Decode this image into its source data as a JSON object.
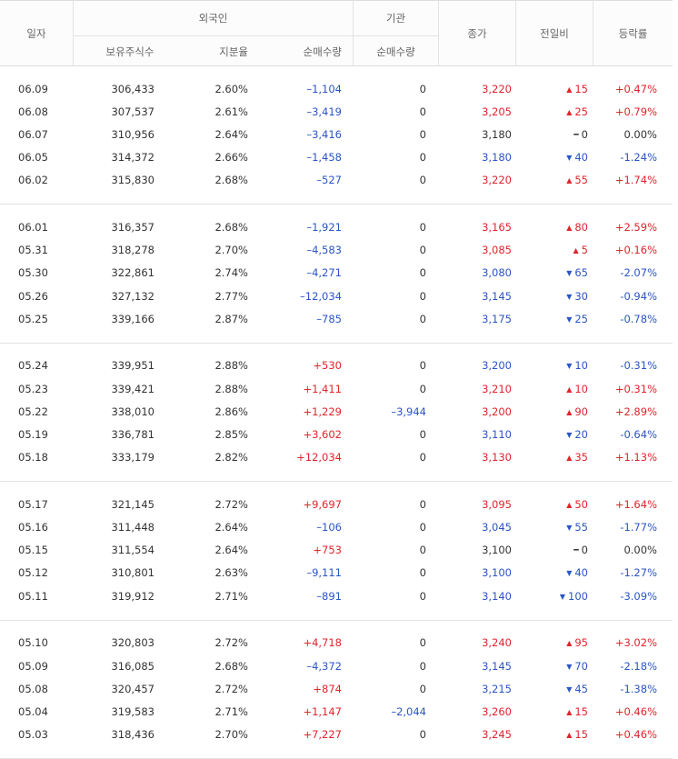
{
  "header": {
    "date": "일자",
    "foreign": "외국인",
    "holdings": "보유주식수",
    "ratio": "지분율",
    "foreign_net": "순매수량",
    "institution": "기관",
    "inst_net": "순매수량",
    "close": "종가",
    "change": "전일비",
    "rate": "등락률"
  },
  "table": {
    "rows": [
      [
        "06.09",
        "306,433",
        "2.60%",
        "–1,104",
        "0",
        "3,220",
        "15",
        "+0.47%"
      ],
      [
        "06.08",
        "307,537",
        "2.61%",
        "–3,419",
        "0",
        "3,205",
        "25",
        "+0.79%"
      ],
      [
        "06.07",
        "310,956",
        "2.64%",
        "–3,416",
        "0",
        "3,180",
        "0",
        "0.00%"
      ],
      [
        "06.05",
        "314,372",
        "2.66%",
        "–1,458",
        "0",
        "3,180",
        "40",
        "-1.24%"
      ],
      [
        "06.02",
        "315,830",
        "2.68%",
        "–527",
        "0",
        "3,220",
        "55",
        "+1.74%"
      ],
      [
        "06.01",
        "316,357",
        "2.68%",
        "–1,921",
        "0",
        "3,165",
        "80",
        "+2.59%"
      ],
      [
        "05.31",
        "318,278",
        "2.70%",
        "–4,583",
        "0",
        "3,085",
        "5",
        "+0.16%"
      ],
      [
        "05.30",
        "322,861",
        "2.74%",
        "–4,271",
        "0",
        "3,080",
        "65",
        "-2.07%"
      ],
      [
        "05.26",
        "327,132",
        "2.77%",
        "–12,034",
        "0",
        "3,145",
        "30",
        "-0.94%"
      ],
      [
        "05.25",
        "339,166",
        "2.87%",
        "–785",
        "0",
        "3,175",
        "25",
        "-0.78%"
      ],
      [
        "05.24",
        "339,951",
        "2.88%",
        "+530",
        "0",
        "3,200",
        "10",
        "-0.31%"
      ],
      [
        "05.23",
        "339,421",
        "2.88%",
        "+1,411",
        "0",
        "3,210",
        "10",
        "+0.31%"
      ],
      [
        "05.22",
        "338,010",
        "2.86%",
        "+1,229",
        "–3,944",
        "3,200",
        "90",
        "+2.89%"
      ],
      [
        "05.19",
        "336,781",
        "2.85%",
        "+3,602",
        "0",
        "3,110",
        "20",
        "-0.64%"
      ],
      [
        "05.18",
        "333,179",
        "2.82%",
        "+12,034",
        "0",
        "3,130",
        "35",
        "+1.13%"
      ],
      [
        "05.17",
        "321,145",
        "2.72%",
        "+9,697",
        "0",
        "3,095",
        "50",
        "+1.64%"
      ],
      [
        "05.16",
        "311,448",
        "2.64%",
        "–106",
        "0",
        "3,045",
        "55",
        "-1.77%"
      ],
      [
        "05.15",
        "311,554",
        "2.64%",
        "+753",
        "0",
        "3,100",
        "0",
        "0.00%"
      ],
      [
        "05.12",
        "310,801",
        "2.63%",
        "–9,111",
        "0",
        "3,100",
        "40",
        "-1.27%"
      ],
      [
        "05.11",
        "319,912",
        "2.71%",
        "–891",
        "0",
        "3,140",
        "100",
        "-3.09%"
      ],
      [
        "05.10",
        "320,803",
        "2.72%",
        "+4,718",
        "0",
        "3,240",
        "95",
        "+3.02%"
      ],
      [
        "05.09",
        "316,085",
        "2.68%",
        "–4,372",
        "0",
        "3,145",
        "70",
        "-2.18%"
      ],
      [
        "05.08",
        "320,457",
        "2.72%",
        "+874",
        "0",
        "3,215",
        "45",
        "-1.38%"
      ],
      [
        "05.04",
        "319,583",
        "2.71%",
        "+1,147",
        "–2,044",
        "3,260",
        "15",
        "+0.46%"
      ],
      [
        "05.03",
        "318,436",
        "2.70%",
        "+7,227",
        "0",
        "3,245",
        "15",
        "+0.46%"
      ]
    ]
  }
}
